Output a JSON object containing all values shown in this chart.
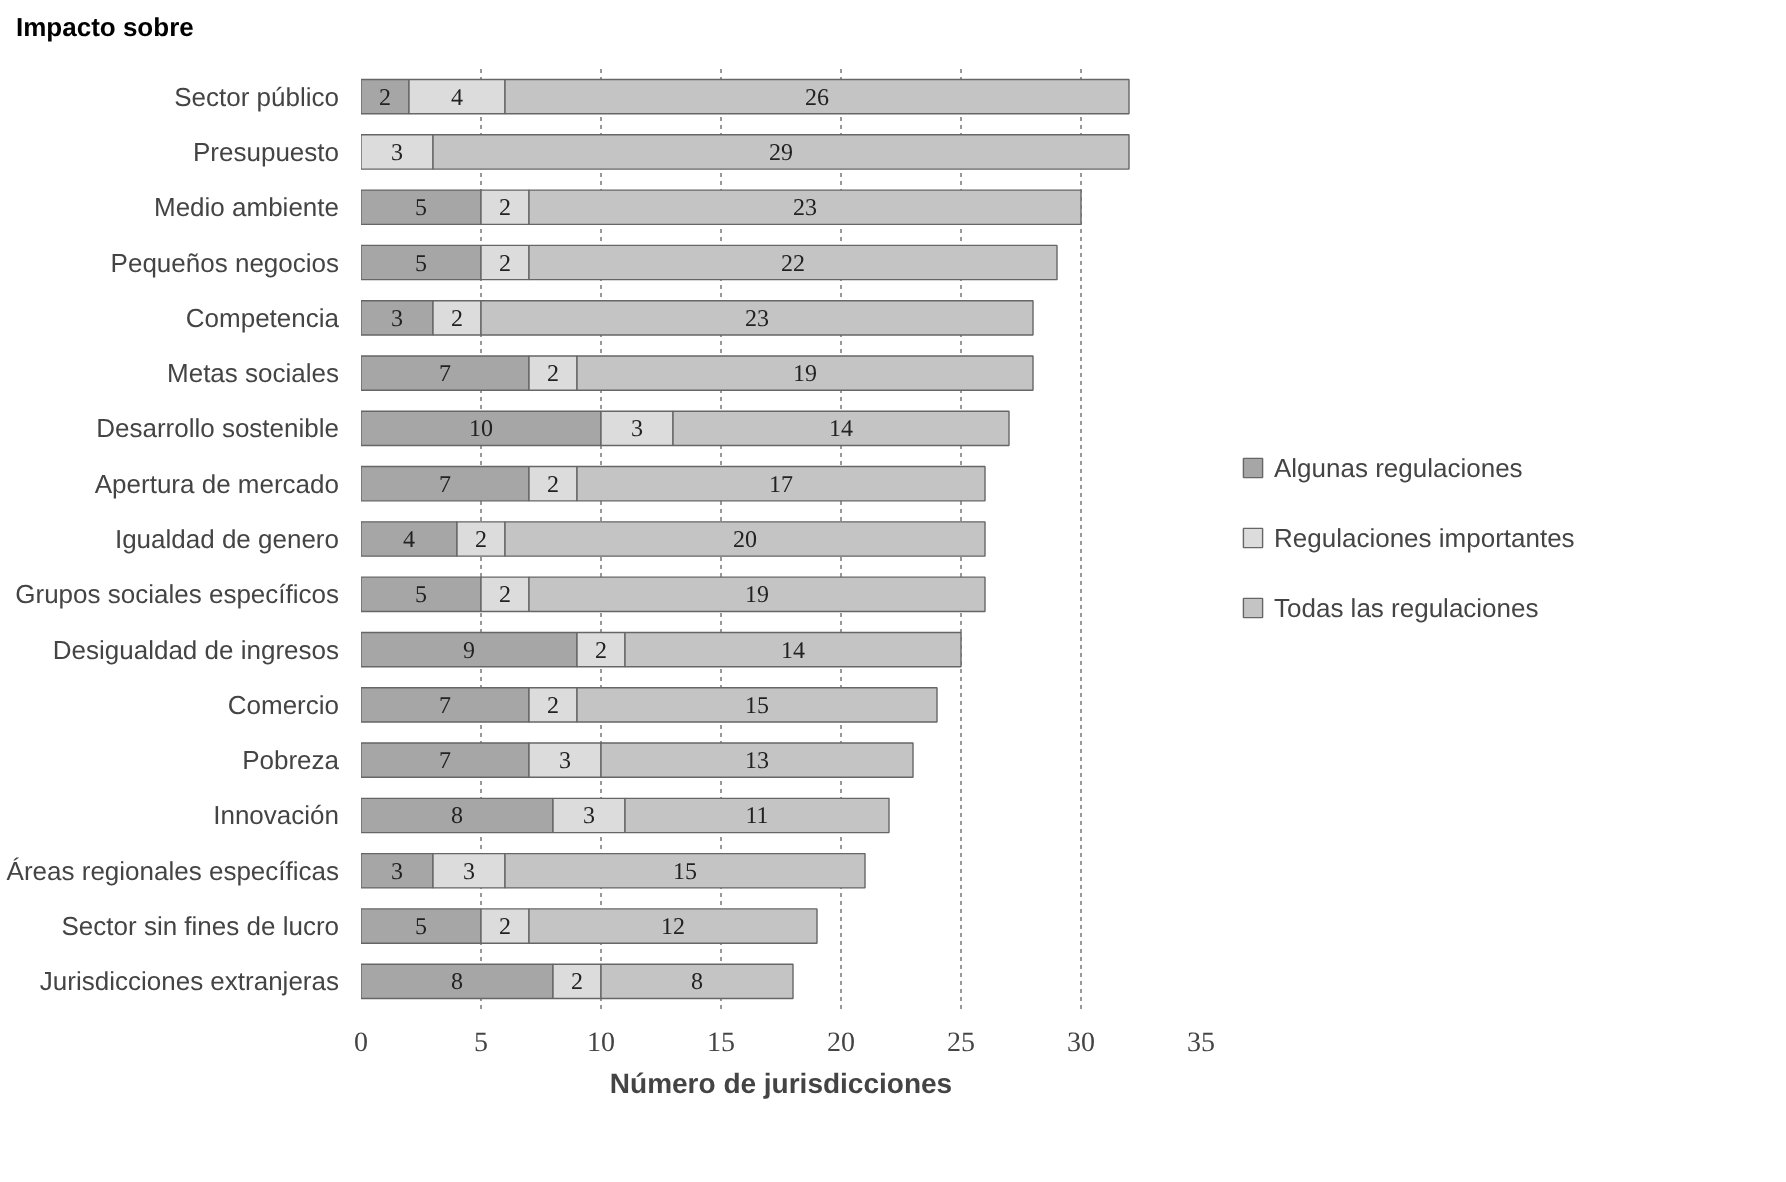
{
  "chart_data": {
    "type": "bar",
    "orientation": "horizontal",
    "stacked": true,
    "data_labels": true,
    "grid": "x",
    "legend": "right",
    "ylabel": "Impacto sobre",
    "xlabel": "Número de jurisdicciones",
    "xlim": [
      0,
      35
    ],
    "xticks": [
      0,
      5,
      10,
      15,
      20,
      25,
      30,
      35
    ],
    "categories": [
      "Sector público",
      "Presupuesto",
      "Medio ambiente",
      "Pequeños negocios",
      "Competencia",
      "Metas sociales",
      "Desarrollo sostenible",
      "Apertura de mercado",
      "Igualdad de genero",
      "Grupos sociales específicos",
      "Desigualdad de ingresos",
      "Comercio",
      "Pobreza",
      "Innovación",
      "Áreas regionales específicas",
      "Sector sin fines de lucro",
      "Jurisdicciones extranjeras"
    ],
    "series": [
      {
        "name": "Algunas regulaciones",
        "color": "#a6a6a6",
        "values": [
          2,
          null,
          5,
          5,
          3,
          7,
          10,
          7,
          4,
          5,
          9,
          7,
          7,
          8,
          3,
          5,
          8
        ]
      },
      {
        "name": "Regulaciones importantes",
        "color": "#dcdcdc",
        "values": [
          4,
          3,
          2,
          2,
          2,
          2,
          3,
          2,
          2,
          2,
          2,
          2,
          3,
          3,
          3,
          2,
          2
        ]
      },
      {
        "name": "Todas las regulaciones",
        "color": "#c4c4c4",
        "values": [
          26,
          29,
          23,
          22,
          23,
          19,
          14,
          17,
          20,
          19,
          14,
          15,
          13,
          11,
          15,
          12,
          8
        ]
      }
    ]
  }
}
